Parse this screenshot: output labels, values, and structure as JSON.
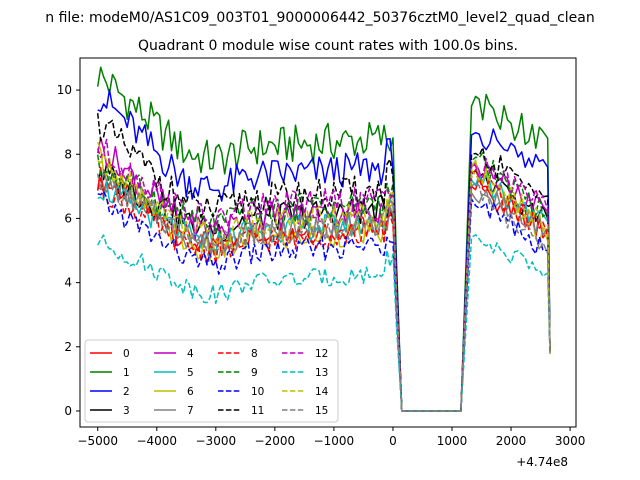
{
  "chart_data": {
    "type": "line",
    "suptitle": "n file: modeM0/AS1C09_003T01_9000006442_50376cztM0_level2_quad_clean",
    "title": "Quadrant 0 module wise count rates with 100.0s bins.",
    "xlabel": "",
    "ylabel": "",
    "x_offset_label": "+4.74e8",
    "xlim": [
      -5300,
      3100
    ],
    "ylim": [
      -0.5,
      11
    ],
    "xticks": [
      -5000,
      -4000,
      -3000,
      -2000,
      -1000,
      0,
      1000,
      2000,
      3000
    ],
    "xtick_labels": [
      "−5000",
      "−4000",
      "−3000",
      "−2000",
      "−1000",
      "0",
      "1000",
      "2000",
      "3000"
    ],
    "yticks": [
      0,
      2,
      4,
      6,
      8,
      10
    ],
    "ytick_labels": [
      "0",
      "2",
      "4",
      "6",
      "8",
      "10"
    ],
    "legend_location": "lower-left",
    "series": [
      {
        "name": "0",
        "color": "#ff0000",
        "dash": "solid",
        "start": 7.3,
        "base": 5.5,
        "gap": 6.2,
        "after": 7.0,
        "end": 5.6
      },
      {
        "name": "1",
        "color": "#008000",
        "dash": "solid",
        "start": 10.5,
        "base": 8.2,
        "gap": 8.4,
        "after": 9.5,
        "end": 8.5
      },
      {
        "name": "2",
        "color": "#0000ff",
        "dash": "solid",
        "start": 9.9,
        "base": 7.3,
        "gap": 8.0,
        "after": 8.6,
        "end": 7.6
      },
      {
        "name": "3",
        "color": "#000000",
        "dash": "solid",
        "start": 7.5,
        "base": 6.0,
        "gap": 6.4,
        "after": 7.4,
        "end": 6.0
      },
      {
        "name": "4",
        "color": "#bf00bf",
        "dash": "solid",
        "start": 8.3,
        "base": 6.0,
        "gap": 6.5,
        "after": 7.6,
        "end": 6.2
      },
      {
        "name": "5",
        "color": "#00bfbf",
        "dash": "solid",
        "start": 7.0,
        "base": 5.6,
        "gap": 6.3,
        "after": 7.2,
        "end": 5.9
      },
      {
        "name": "6",
        "color": "#bfbf00",
        "dash": "solid",
        "start": 8.0,
        "base": 5.3,
        "gap": 6.3,
        "after": 7.6,
        "end": 5.3
      },
      {
        "name": "7",
        "color": "#808080",
        "dash": "solid",
        "start": 7.3,
        "base": 5.6,
        "gap": 6.0,
        "after": 6.8,
        "end": 5.7
      },
      {
        "name": "8",
        "color": "#ff0000",
        "dash": "dash",
        "start": 7.0,
        "base": 5.3,
        "gap": 6.0,
        "after": 7.3,
        "end": 5.5
      },
      {
        "name": "9",
        "color": "#008000",
        "dash": "dash",
        "start": 7.6,
        "base": 6.2,
        "gap": 6.8,
        "after": 7.8,
        "end": 6.2
      },
      {
        "name": "10",
        "color": "#0000ff",
        "dash": "dash",
        "start": 6.6,
        "base": 4.9,
        "gap": 5.6,
        "after": 6.6,
        "end": 5.0
      },
      {
        "name": "11",
        "color": "#000000",
        "dash": "dash",
        "start": 9.0,
        "base": 6.6,
        "gap": 7.6,
        "after": 8.0,
        "end": 6.7
      },
      {
        "name": "12",
        "color": "#bf00bf",
        "dash": "dash",
        "start": 8.2,
        "base": 6.3,
        "gap": 6.8,
        "after": 7.7,
        "end": 6.3
      },
      {
        "name": "13",
        "color": "#00bfbf",
        "dash": "dash",
        "start": 5.3,
        "base": 4.0,
        "gap": 4.8,
        "after": 5.4,
        "end": 4.3
      },
      {
        "name": "14",
        "color": "#bfbf00",
        "dash": "dash",
        "start": 7.8,
        "base": 5.9,
        "gap": 6.5,
        "after": 7.5,
        "end": 5.8
      },
      {
        "name": "15",
        "color": "#808080",
        "dash": "dash",
        "start": 7.3,
        "base": 5.5,
        "gap": 6.1,
        "after": 7.0,
        "end": 4.9
      }
    ]
  }
}
